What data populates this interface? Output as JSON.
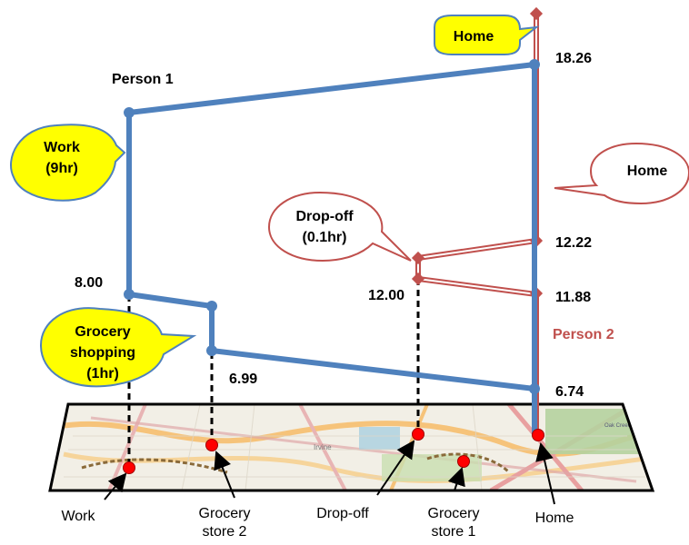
{
  "person1": {
    "label": "Person 1",
    "times": {
      "t1": "8.00",
      "t2": "6.99",
      "t3": "18.26"
    },
    "callouts": {
      "work": {
        "line1": "Work",
        "line2": "(9hr)"
      },
      "grocery": {
        "line1": "Grocery",
        "line2": "shopping",
        "line3": "(1hr)"
      },
      "home": "Home"
    },
    "color": "#4f81bd"
  },
  "person2": {
    "label": "Person 2",
    "times": {
      "t1": "6.74",
      "t2": "11.88",
      "t3": "12.00",
      "t4": "12.22"
    },
    "callouts": {
      "dropoff": {
        "line1": "Drop-off",
        "line2": "(0.1hr)"
      },
      "home": "Home"
    },
    "color": "#c0504d"
  },
  "map_labels": {
    "work": "Work",
    "grocery2": {
      "line1": "Grocery",
      "line2": "store 2"
    },
    "dropoff": "Drop-off",
    "grocery1": {
      "line1": "Grocery",
      "line2": "store 1"
    },
    "home": "Home"
  },
  "map_text": {
    "city": "Irvine",
    "park": "Oak Creek Golf Course"
  }
}
